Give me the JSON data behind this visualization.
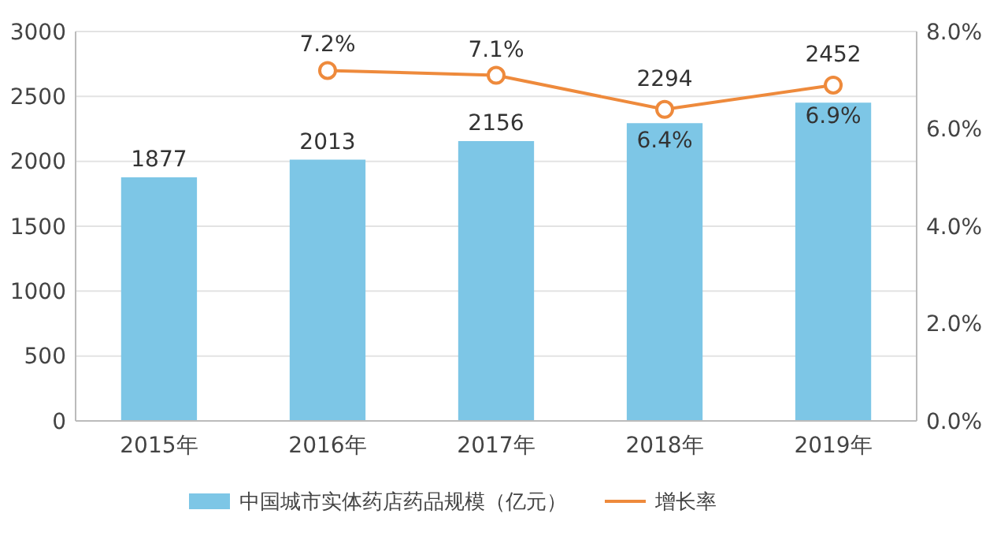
{
  "chart_data": {
    "type": "bar",
    "categories": [
      "2015年",
      "2016年",
      "2017年",
      "2018年",
      "2019年"
    ],
    "series": [
      {
        "name": "中国城市实体药店药品规模（亿元）",
        "color": "#7dc6e6",
        "values": [
          1877,
          2013,
          2156,
          2294,
          2452
        ],
        "value_labels": [
          "1877",
          "2013",
          "2156",
          "2294",
          "2452"
        ]
      },
      {
        "name": "增长率",
        "type": "line",
        "axis": "y2",
        "color": "#ee8a3c",
        "values": [
          null,
          7.2,
          7.1,
          6.4,
          6.9
        ],
        "value_labels": [
          null,
          "7.2%",
          "7.1%",
          "6.4%",
          "6.9%"
        ]
      }
    ],
    "ylim": [
      0,
      3000
    ],
    "yticks": [
      0,
      500,
      1000,
      1500,
      2000,
      2500,
      3000
    ],
    "y2lim": [
      0,
      8
    ],
    "y2ticks": [
      {
        "value": 0,
        "label": "0.0%"
      },
      {
        "value": 2,
        "label": "2.0%"
      },
      {
        "value": 4,
        "label": "4.0%"
      },
      {
        "value": 6,
        "label": "6.0%"
      },
      {
        "value": 8,
        "label": "8.0%"
      }
    ],
    "grid": "y",
    "legend": "bottom",
    "marker": "circle",
    "line_style": "solid"
  }
}
